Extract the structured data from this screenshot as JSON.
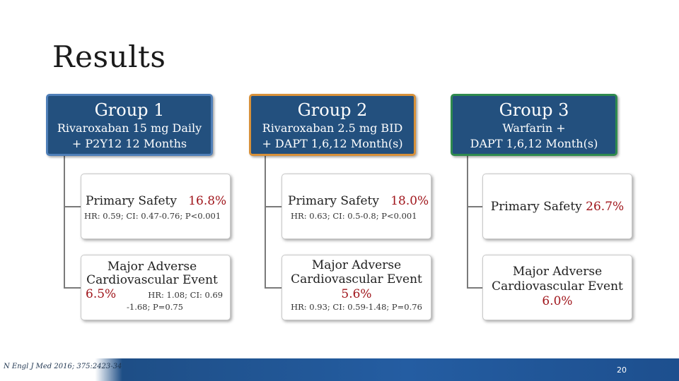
{
  "slide": {
    "title": "Results",
    "page_number": "20",
    "citation": "N Engl J Med 2016; 375:2423-34"
  },
  "groups": [
    {
      "name": "Group 1",
      "desc_line1": "Rivaroxaban 15 mg Daily",
      "desc_line2": "+ P2Y12 12 Months",
      "border_color": "#4f7fb8",
      "safety_label": "Primary Safety",
      "safety_value": "16.8%",
      "safety_stats": "HR: 0.59; CI: 0.47-0.76; P<0.001",
      "mace_line1": "Major Adverse",
      "mace_line2": "Cardiovascular Event",
      "mace_value": "6.5%",
      "mace_stats_a": "HR: 1.08; CI: 0.69",
      "mace_stats_b": "-1.68; P=0.75"
    },
    {
      "name": "Group 2",
      "desc_line1": "Rivaroxaban 2.5 mg BID",
      "desc_line2": "+ DAPT 1,6,12 Month(s)",
      "border_color": "#d8913a",
      "safety_label": "Primary Safety",
      "safety_value": "18.0%",
      "safety_stats": "HR: 0.63; CI: 0.5-0.8; P<0.001",
      "mace_line1": "Major Adverse",
      "mace_line2": "Cardiovascular Event",
      "mace_value": "5.6%",
      "mace_stats": "HR: 0.93; CI: 0.59-1.48; P=0.76"
    },
    {
      "name": "Group 3",
      "desc_line1": "Warfarin +",
      "desc_line2": "DAPT 1,6,12 Month(s)",
      "border_color": "#2f8a4e",
      "safety_label": "Primary Safety",
      "safety_value": "26.7%",
      "mace_line1": "Major Adverse",
      "mace_line2": "Cardiovascular Event",
      "mace_value": "6.0%"
    }
  ]
}
